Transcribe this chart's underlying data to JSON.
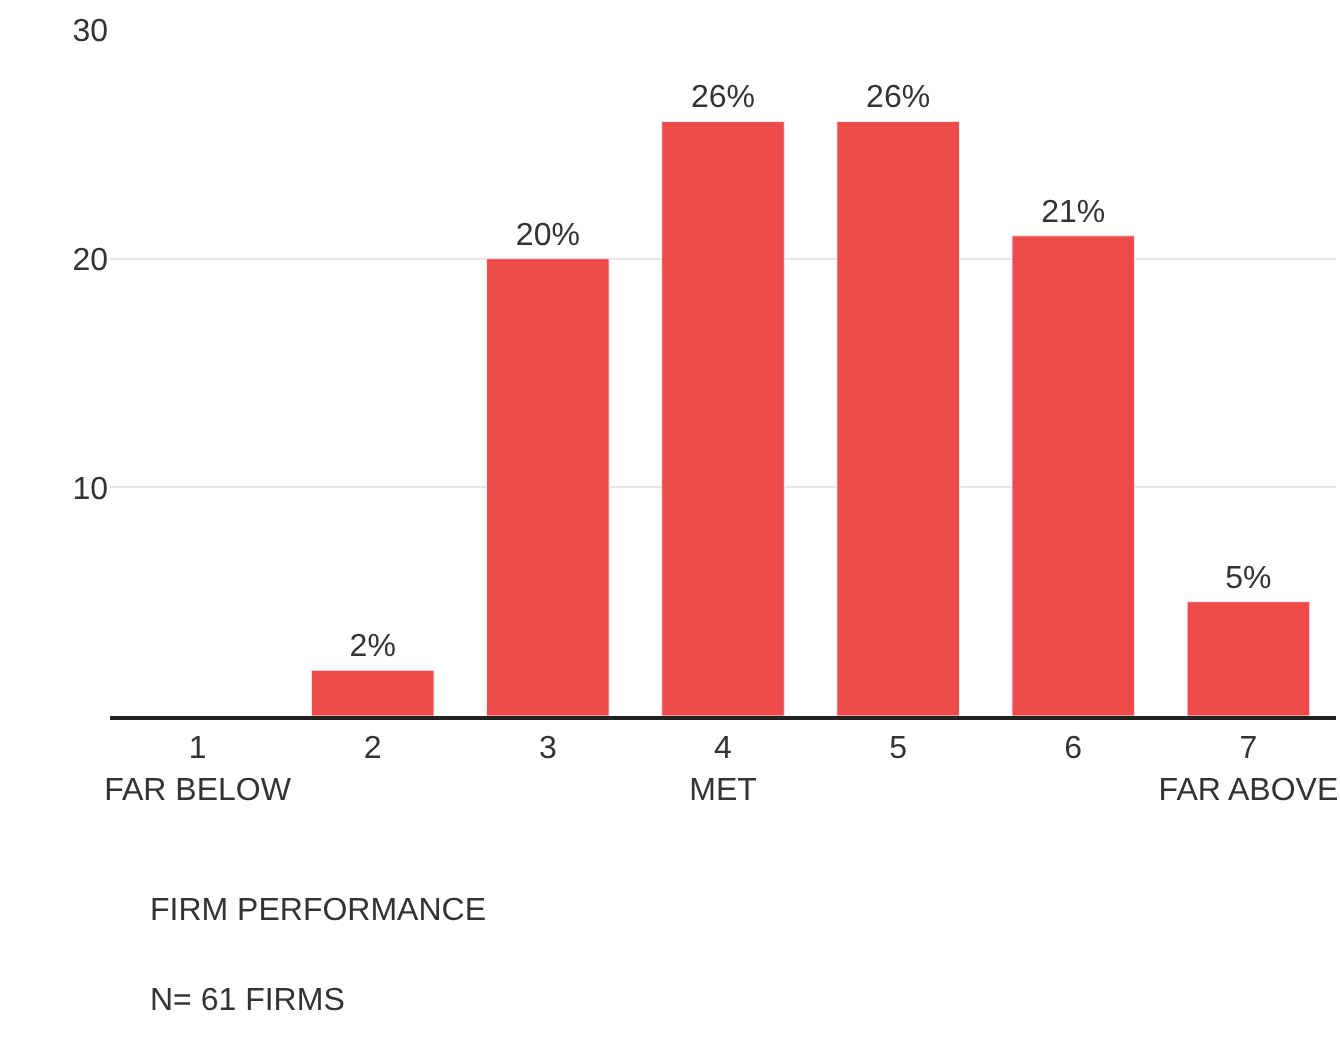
{
  "chart_data": {
    "type": "bar",
    "categories": [
      "1\nFAR BELOW",
      "2",
      "3",
      "4\nMET",
      "5",
      "6",
      "7\nFAR ABOVE"
    ],
    "values": [
      null,
      2,
      20,
      26,
      26,
      21,
      5
    ],
    "value_labels": [
      null,
      "2%",
      "20%",
      "26%",
      "26%",
      "21%",
      "5%"
    ],
    "color": "#ef4a4a",
    "ylim": [
      0,
      30
    ],
    "yticks": [
      10,
      20,
      30
    ],
    "grid": "y",
    "xlabel": "FIRM PERFORMANCE",
    "annotations": [
      "N= 61 FIRMS"
    ]
  }
}
